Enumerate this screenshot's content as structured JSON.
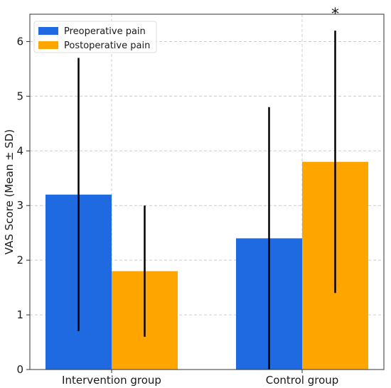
{
  "chart_data": {
    "type": "bar",
    "title": "",
    "xlabel": "",
    "ylabel": "VAS Score (Mean ± SD)",
    "categories": [
      "Intervention group",
      "Control group"
    ],
    "series": [
      {
        "name": "Preoperative pain",
        "color": "#1f6ae0",
        "values": [
          3.2,
          2.4
        ],
        "error": [
          2.5,
          2.4
        ]
      },
      {
        "name": "Postoperative pain",
        "color": "#ffa500",
        "values": [
          1.8,
          3.8
        ],
        "error": [
          1.2,
          2.4
        ]
      }
    ],
    "ylim": [
      0,
      6.5
    ],
    "yticks": [
      "0",
      "1",
      "2",
      "3",
      "4",
      "5",
      "6"
    ],
    "grid": true,
    "legend_position": "top-left",
    "annotations": [
      {
        "text": "*",
        "category": "Control group",
        "series": "Postoperative pain"
      }
    ]
  }
}
